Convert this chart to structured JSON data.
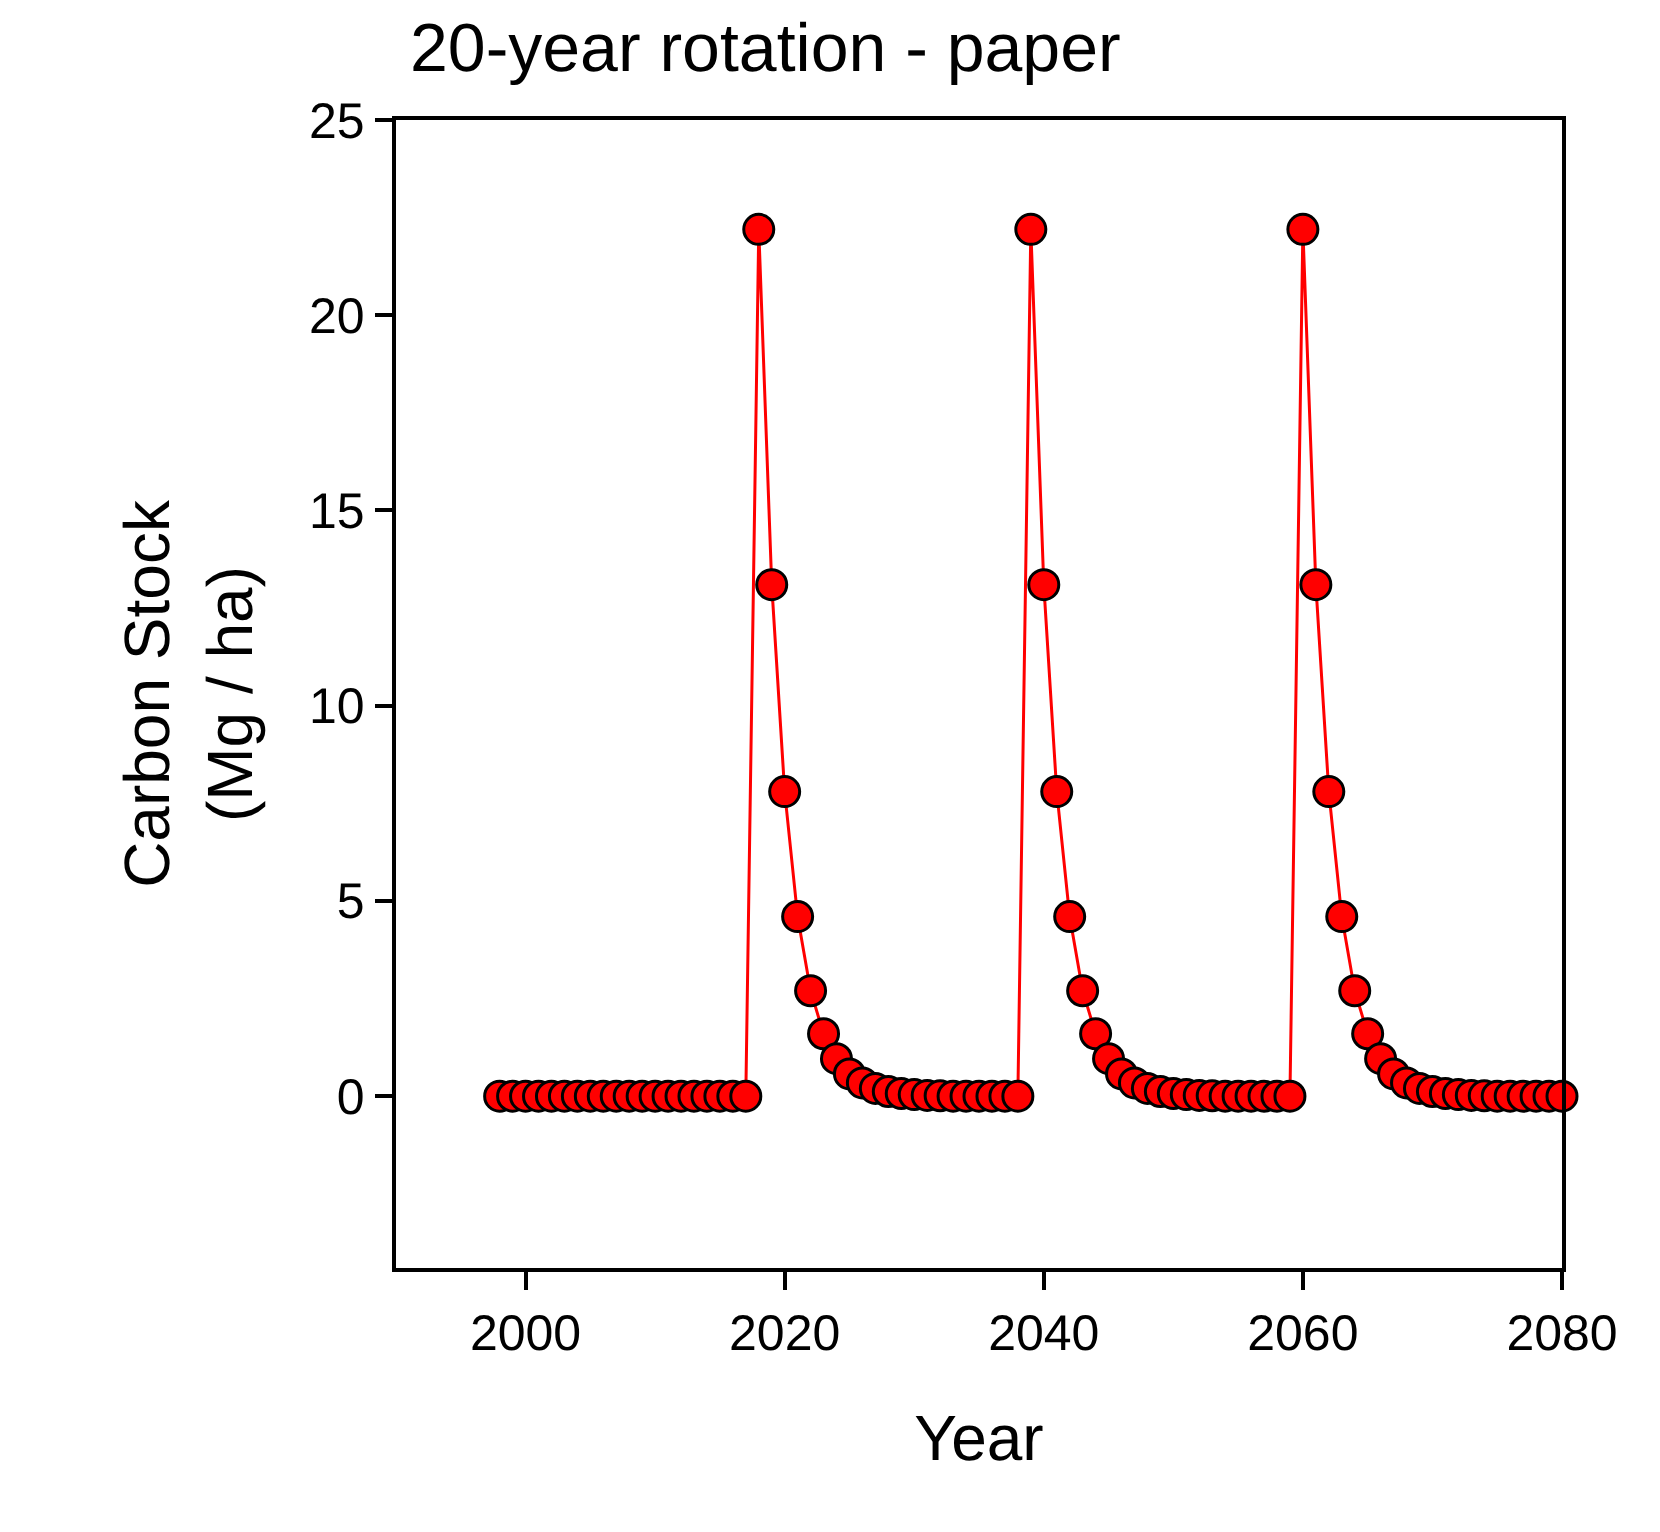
{
  "chart_data": {
    "type": "line",
    "title": "20-year rotation - paper",
    "xlabel": "Year",
    "ylabel": "Carbon Stock\n(Mg / ha)",
    "x": [
      1998,
      1999,
      2000,
      2001,
      2002,
      2003,
      2004,
      2005,
      2006,
      2007,
      2008,
      2009,
      2010,
      2011,
      2012,
      2013,
      2014,
      2015,
      2016,
      2017,
      2018,
      2019,
      2020,
      2021,
      2022,
      2023,
      2024,
      2025,
      2026,
      2027,
      2028,
      2029,
      2030,
      2031,
      2032,
      2033,
      2034,
      2035,
      2036,
      2037,
      2038,
      2039,
      2040,
      2041,
      2042,
      2043,
      2044,
      2045,
      2046,
      2047,
      2048,
      2049,
      2050,
      2051,
      2052,
      2053,
      2054,
      2055,
      2056,
      2057,
      2058,
      2059,
      2060,
      2061,
      2062,
      2063,
      2064,
      2065,
      2066,
      2067,
      2068,
      2069,
      2070,
      2071,
      2072,
      2073,
      2074,
      2075,
      2076,
      2077,
      2078,
      2079,
      2080
    ],
    "series": [
      {
        "color": "#ff0000",
        "values": [
          0,
          0,
          0,
          0,
          0,
          0,
          0,
          0,
          0,
          0,
          0,
          0,
          0,
          0,
          0,
          0,
          0,
          0,
          0,
          0,
          22.2,
          13.1,
          7.8,
          4.6,
          2.7,
          1.6,
          0.96,
          0.57,
          0.34,
          0.2,
          0.12,
          0.07,
          0.04,
          0.02,
          0.01,
          0,
          0,
          0,
          0,
          0,
          0,
          22.2,
          13.1,
          7.8,
          4.6,
          2.7,
          1.6,
          0.96,
          0.57,
          0.34,
          0.2,
          0.12,
          0.07,
          0.04,
          0.02,
          0.01,
          0,
          0,
          0,
          0,
          0,
          0,
          22.2,
          13.1,
          7.8,
          4.6,
          2.7,
          1.6,
          0.96,
          0.57,
          0.34,
          0.2,
          0.12,
          0.07,
          0.04,
          0.02,
          0.01,
          0,
          0,
          0,
          0,
          0,
          0
        ]
      }
    ],
    "marker": "circle",
    "line_style": "solid",
    "xlim": [
      1990,
      2080
    ],
    "xticks": [
      2000,
      2020,
      2040,
      2060,
      2080
    ],
    "ylim": [
      -4.4,
      25
    ],
    "yticks": [
      0,
      5,
      10,
      15,
      20,
      25
    ]
  }
}
